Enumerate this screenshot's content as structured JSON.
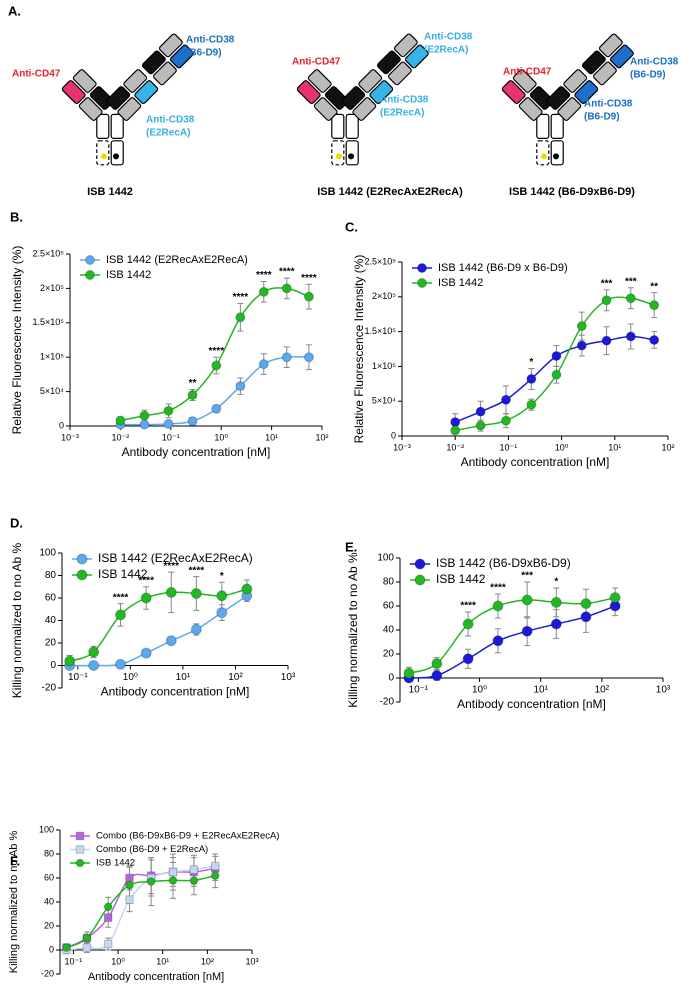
{
  "panel_a": {
    "label": "A.",
    "antibodies": [
      {
        "name": "ISB 1442",
        "left": "Anti-CD47",
        "outer": [
          "Anti-CD38",
          "(B6-D9)"
        ],
        "inner": [
          "Anti-CD38",
          "(E2RecA)"
        ]
      },
      {
        "name": "ISB 1442 (E2RecAxE2RecA)",
        "left": "Anti-CD47",
        "outer": [
          "Anti-CD38",
          "(E2RecA)"
        ],
        "inner": [
          "Anti-CD38",
          "(E2RecA)"
        ]
      },
      {
        "name": "ISB 1442 (B6-D9xB6-D9)",
        "left": "Anti-CD47",
        "outer": [
          "Anti-CD38",
          "(B6-D9)"
        ],
        "inner": [
          "Anti-CD38",
          "(B6-D9)"
        ]
      }
    ]
  },
  "chart_data": [
    {
      "panel_label": "B.",
      "type": "scatter",
      "log_x": true,
      "fit_curve": true,
      "legend": "top-left",
      "xlabel": "Antibody concentration [nM]",
      "ylabel": "Relative Fluorescence Intensity (%)",
      "x": [
        0.01,
        0.03,
        0.09,
        0.27,
        0.8,
        2.4,
        7,
        20,
        55
      ],
      "series": [
        {
          "name": "ISB 1442 (E2RecAxE2RecA)",
          "color": "#5aa8f0",
          "marker": "circle",
          "values": [
            2000,
            2000,
            3000,
            7000,
            25000,
            58000,
            90000,
            100000,
            100000
          ],
          "errors": [
            3000,
            3000,
            3000,
            5000,
            5000,
            12000,
            15000,
            15000,
            18000
          ]
        },
        {
          "name": "ISB 1442",
          "color": "#22b822",
          "marker": "circle",
          "values": [
            8000,
            15000,
            22000,
            45000,
            88000,
            158000,
            195000,
            200000,
            188000
          ],
          "errors": [
            5000,
            8000,
            10000,
            8000,
            12000,
            20000,
            15000,
            15000,
            18000
          ]
        }
      ],
      "xlim": [
        0.001,
        100
      ],
      "xticks": [
        {
          "value": 0.001,
          "label": "10⁻³"
        },
        {
          "value": 0.01,
          "label": "10⁻²"
        },
        {
          "value": 0.1,
          "label": "10⁻¹"
        },
        {
          "value": 1,
          "label": "10⁰"
        },
        {
          "value": 10,
          "label": "10¹"
        },
        {
          "value": 100,
          "label": "10²"
        }
      ],
      "ylim": [
        0,
        250000
      ],
      "yticks": [
        0,
        {
          "value": 50000,
          "label": "5×10⁴"
        },
        {
          "value": 100000,
          "label": "1×10⁵"
        },
        {
          "value": 150000,
          "label": "1.5×10⁵"
        },
        {
          "value": 200000,
          "label": "2×10⁵"
        },
        {
          "value": 250000,
          "label": "2.5×10⁵"
        }
      ],
      "annotations": [
        {
          "x": 0.27,
          "text": "**"
        },
        {
          "x": 0.8,
          "text": "****"
        },
        {
          "x": 2.4,
          "text": "****"
        },
        {
          "x": 7,
          "text": "****"
        },
        {
          "x": 20,
          "text": "****"
        },
        {
          "x": 55,
          "text": "****"
        }
      ]
    },
    {
      "panel_label": "C.",
      "type": "scatter",
      "log_x": true,
      "fit_curve": true,
      "legend": "top-left",
      "xlabel": "Antibody concentration [nM]",
      "ylabel": "Relative Fluorescence Intensity (%)",
      "x": [
        0.01,
        0.03,
        0.09,
        0.27,
        0.8,
        2.4,
        7,
        20,
        55
      ],
      "series": [
        {
          "name": "ISB 1442 (B6-D9 x B6-D9)",
          "color": "#1a1ad8",
          "marker": "circle",
          "values": [
            20000,
            35000,
            52000,
            82000,
            115000,
            130000,
            137000,
            143000,
            138000
          ],
          "errors": [
            12000,
            15000,
            20000,
            15000,
            15000,
            15000,
            20000,
            18000,
            12000
          ]
        },
        {
          "name": "ISB 1442",
          "color": "#22b822",
          "marker": "circle",
          "values": [
            8000,
            15000,
            22000,
            45000,
            88000,
            158000,
            195000,
            198000,
            188000
          ],
          "errors": [
            5000,
            8000,
            10000,
            8000,
            12000,
            20000,
            15000,
            15000,
            18000
          ]
        }
      ],
      "xlim": [
        0.001,
        100
      ],
      "xticks": [
        {
          "value": 0.001,
          "label": "10⁻³"
        },
        {
          "value": 0.01,
          "label": "10⁻²"
        },
        {
          "value": 0.1,
          "label": "10⁻¹"
        },
        {
          "value": 1,
          "label": "10⁰"
        },
        {
          "value": 10,
          "label": "10¹"
        },
        {
          "value": 100,
          "label": "10²"
        }
      ],
      "ylim": [
        0,
        250000
      ],
      "yticks": [
        0,
        {
          "value": 50000,
          "label": "5×10⁴"
        },
        {
          "value": 100000,
          "label": "1×10⁵"
        },
        {
          "value": 150000,
          "label": "1.5×10⁵"
        },
        {
          "value": 200000,
          "label": "2×10⁵"
        },
        {
          "value": 250000,
          "label": "2.5×10⁵"
        }
      ],
      "annotations": [
        {
          "x": 0.27,
          "text": "*"
        },
        {
          "x": 7,
          "text": "***"
        },
        {
          "x": 20,
          "text": "***"
        },
        {
          "x": 55,
          "text": "**"
        }
      ]
    },
    {
      "panel_label": "D.",
      "type": "scatter",
      "log_x": true,
      "fit_curve": true,
      "legend": "top-left",
      "xlabel": "Antibody concentration [nM]",
      "ylabel": "Killing normalized to no Ab %",
      "x": [
        0.07,
        0.2,
        0.65,
        2,
        6,
        18,
        55,
        165
      ],
      "series": [
        {
          "name": "ISB 1442 (E2RecAxE2RecA)",
          "color": "#5aa8f0",
          "marker": "circle",
          "values": [
            0,
            0,
            1,
            11,
            22,
            32,
            47,
            62
          ],
          "errors": [
            3,
            2,
            2,
            3,
            3,
            5,
            7,
            5
          ]
        },
        {
          "name": "ISB 1442",
          "color": "#22b822",
          "marker": "circle",
          "values": [
            4,
            12,
            45,
            60,
            65,
            64,
            62,
            68
          ],
          "errors": [
            5,
            5,
            10,
            10,
            18,
            15,
            12,
            8
          ]
        }
      ],
      "xlim": [
        0.05,
        1000
      ],
      "xticks": [
        {
          "value": 0.1,
          "label": "10⁻¹"
        },
        {
          "value": 1,
          "label": "10⁰"
        },
        {
          "value": 10,
          "label": "10¹"
        },
        {
          "value": 100,
          "label": "10²"
        },
        {
          "value": 1000,
          "label": "10³"
        }
      ],
      "ylim": [
        -20,
        100
      ],
      "yticks": [
        -20,
        0,
        20,
        40,
        60,
        80,
        100
      ],
      "annotations": [
        {
          "x": 0.65,
          "text": "****"
        },
        {
          "x": 2,
          "text": "****"
        },
        {
          "x": 6,
          "text": "****"
        },
        {
          "x": 18,
          "text": "****"
        },
        {
          "x": 55,
          "text": "*"
        }
      ]
    },
    {
      "panel_label": "E.",
      "type": "scatter",
      "log_x": true,
      "fit_curve": true,
      "legend": "top-left",
      "xlabel": "Antibody concentration [nM]",
      "ylabel": "Killing normalized to no Ab %",
      "x": [
        0.07,
        0.2,
        0.65,
        2,
        6,
        18,
        55,
        165
      ],
      "series": [
        {
          "name": "ISB 1442 (B6-D9xB6-D9)",
          "color": "#1a1ad8",
          "marker": "circle",
          "values": [
            0,
            2,
            16,
            31,
            39,
            45,
            51,
            60
          ],
          "errors": [
            3,
            4,
            8,
            10,
            12,
            12,
            13,
            8
          ]
        },
        {
          "name": "ISB 1442",
          "color": "#22b822",
          "marker": "circle",
          "values": [
            4,
            12,
            45,
            60,
            65,
            63,
            62,
            67
          ],
          "errors": [
            5,
            5,
            10,
            10,
            15,
            12,
            12,
            8
          ]
        }
      ],
      "xlim": [
        0.05,
        1000
      ],
      "xticks": [
        {
          "value": 0.1,
          "label": "10⁻¹"
        },
        {
          "value": 1,
          "label": "10⁰"
        },
        {
          "value": 10,
          "label": "10¹"
        },
        {
          "value": 100,
          "label": "10²"
        },
        {
          "value": 1000,
          "label": "10³"
        }
      ],
      "ylim": [
        -20,
        100
      ],
      "yticks": [
        -20,
        0,
        20,
        40,
        60,
        80,
        100
      ],
      "annotations": [
        {
          "x": 0.65,
          "text": "****"
        },
        {
          "x": 2,
          "text": "****"
        },
        {
          "x": 6,
          "text": "***"
        },
        {
          "x": 18,
          "text": "*"
        }
      ]
    },
    {
      "panel_label": "F.",
      "type": "scatter",
      "log_x": true,
      "fit_curve": true,
      "legend": "top-left",
      "xlabel": "Antibody concentration [nM]",
      "ylabel": "Killing normalized to no Ab %",
      "x": [
        0.07,
        0.2,
        0.6,
        1.8,
        5.5,
        17,
        50,
        150
      ],
      "series": [
        {
          "name": "Combo (B6-D9xB6-D9 + E2RecAxE2RecA)",
          "color": "#b266d8",
          "marker": "square",
          "values": [
            2,
            10,
            27,
            60,
            62,
            65,
            65,
            68
          ],
          "errors": [
            3,
            5,
            8,
            10,
            15,
            12,
            12,
            10
          ]
        },
        {
          "name": "Combo (B6-D9 + E2RecA)",
          "color": "#c4d6f2",
          "marker": "square",
          "values": [
            0,
            2,
            5,
            42,
            60,
            65,
            67,
            70
          ],
          "errors": [
            3,
            4,
            5,
            10,
            15,
            15,
            12,
            10
          ]
        },
        {
          "name": "ISB 1442",
          "color": "#22b822",
          "marker": "circle",
          "values": [
            2,
            10,
            36,
            54,
            57,
            58,
            58,
            62
          ],
          "errors": [
            3,
            5,
            8,
            15,
            20,
            15,
            12,
            10
          ]
        }
      ],
      "xlim": [
        0.05,
        1000
      ],
      "xticks": [
        {
          "value": 0.1,
          "label": "10⁻¹"
        },
        {
          "value": 1,
          "label": "10⁰"
        },
        {
          "value": 10,
          "label": "10¹"
        },
        {
          "value": 100,
          "label": "10²"
        },
        {
          "value": 1000,
          "label": "10³"
        }
      ],
      "ylim": [
        -20,
        100
      ],
      "yticks": [
        -20,
        0,
        20,
        40,
        60,
        80,
        100
      ],
      "annotations": []
    }
  ]
}
